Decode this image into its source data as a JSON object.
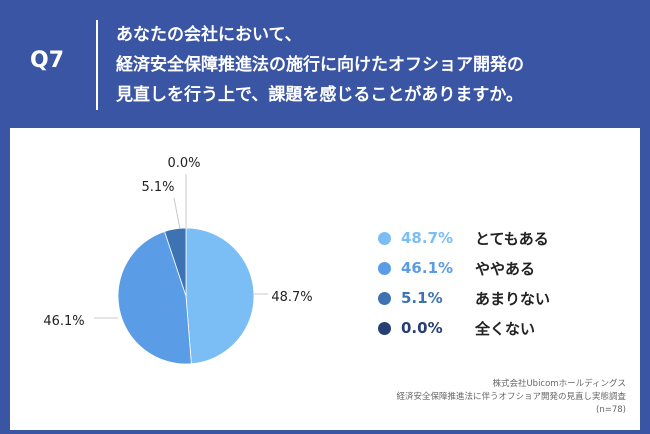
{
  "question": {
    "label": "Q7",
    "lines": [
      "あなたの会社において、",
      "経済安全保障推進法の施行に向けたオフショア開発の",
      "見直しを行う上で、課題を感じることがありますか。"
    ]
  },
  "chart_data": {
    "type": "pie",
    "labels": [
      "とてもある",
      "ややある",
      "あまりない",
      "全くない"
    ],
    "values": [
      48.7,
      46.1,
      5.1,
      0.0
    ],
    "value_labels": [
      "48.7%",
      "46.1%",
      "5.1%",
      "0.0%"
    ],
    "colors": [
      "#7bbef5",
      "#5a9de6",
      "#3e73b3",
      "#263f73"
    ],
    "start_angle_deg": 0,
    "direction": "clockwise",
    "legend_position": "right"
  },
  "source": {
    "lines": [
      "株式会社Ubicomホールディングス",
      "経済安全保障推進法に伴うオフショア開発の見直し実態調査",
      "(n=78)"
    ]
  }
}
